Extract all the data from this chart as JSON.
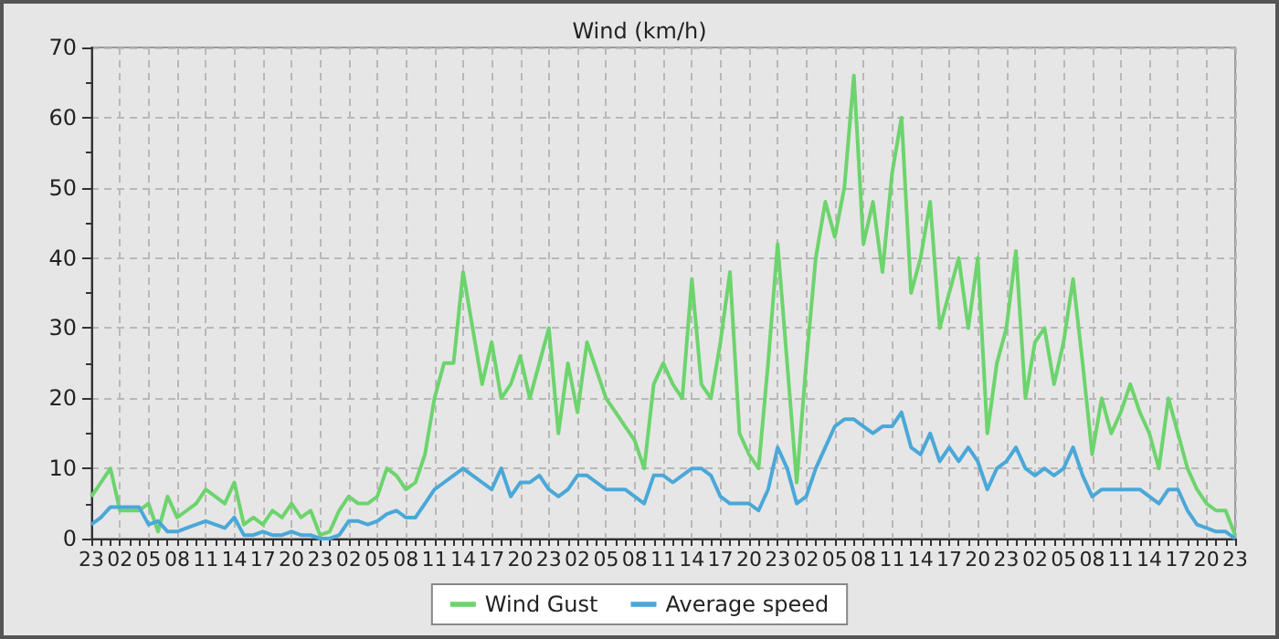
{
  "chart_data": {
    "type": "line",
    "title": "Wind (km/h)",
    "categories": [
      "23",
      null,
      null,
      "02",
      null,
      null,
      "05",
      null,
      null,
      "08",
      null,
      null,
      "11",
      null,
      null,
      "14",
      null,
      null,
      "17",
      null,
      null,
      "20",
      null,
      null,
      "23",
      null,
      null,
      "02",
      null,
      null,
      "05",
      null,
      null,
      "08",
      null,
      null,
      "11",
      null,
      null,
      "14",
      null,
      null,
      "17",
      null,
      null,
      "20",
      null,
      null,
      "23",
      null,
      null,
      "02",
      null,
      null,
      "05",
      null,
      null,
      "08",
      null,
      null,
      "11",
      null,
      null,
      "14",
      null,
      null,
      "17",
      null,
      null,
      "20",
      null,
      null,
      "23",
      null,
      null,
      "02",
      null,
      null,
      "05",
      null,
      null,
      "08",
      null,
      null,
      "11",
      null,
      null,
      "14",
      null,
      null,
      "17",
      null,
      null,
      "20",
      null,
      null,
      "23",
      null,
      null,
      "02",
      null,
      null,
      "05",
      null,
      null,
      "08",
      null,
      null,
      "11",
      null,
      null,
      "14",
      null,
      null,
      "17",
      null,
      null,
      "20",
      null,
      null,
      "23"
    ],
    "series": [
      {
        "name": "Wind Gust",
        "color": "#6dd46d",
        "values": [
          6,
          8,
          10,
          4,
          4,
          4,
          5,
          1,
          6,
          3,
          4,
          5,
          7,
          6,
          5,
          8,
          2,
          3,
          2,
          4,
          3,
          5,
          3,
          4,
          0.5,
          1,
          4,
          6,
          5,
          5,
          6,
          10,
          9,
          7,
          8,
          12,
          20,
          25,
          25,
          38,
          30,
          22,
          28,
          20,
          22,
          26,
          20,
          25,
          30,
          15,
          25,
          18,
          28,
          24,
          20,
          18,
          16,
          14,
          10,
          22,
          25,
          22,
          20,
          37,
          22,
          20,
          28,
          38,
          15,
          12,
          10,
          25,
          42,
          25,
          8,
          25,
          40,
          48,
          43,
          50,
          66,
          42,
          48,
          38,
          52,
          60,
          35,
          40,
          48,
          30,
          35,
          40,
          30,
          40,
          15,
          25,
          30,
          41,
          20,
          28,
          30,
          22,
          28,
          37,
          25,
          12,
          20,
          15,
          18,
          22,
          18,
          15,
          10,
          20,
          15,
          10,
          7,
          5,
          4,
          4,
          0.5
        ]
      },
      {
        "name": "Average speed",
        "color": "#4aa8d8",
        "values": [
          2,
          3,
          4.5,
          4.5,
          4.5,
          4.5,
          2,
          2.5,
          1,
          1,
          1.5,
          2,
          2.5,
          2,
          1.5,
          3,
          0.5,
          0.5,
          1,
          0.5,
          0.5,
          1,
          0.5,
          0.5,
          0,
          0,
          0.5,
          2.5,
          2.5,
          2,
          2.5,
          3.5,
          4,
          3,
          3,
          5,
          7,
          8,
          9,
          10,
          9,
          8,
          7,
          10,
          6,
          8,
          8,
          9,
          7,
          6,
          7,
          9,
          9,
          8,
          7,
          7,
          7,
          6,
          5,
          9,
          9,
          8,
          9,
          10,
          10,
          9,
          6,
          5,
          5,
          5,
          4,
          7,
          13,
          10,
          5,
          6,
          10,
          13,
          16,
          17,
          17,
          16,
          15,
          16,
          16,
          18,
          13,
          12,
          15,
          11,
          13,
          11,
          13,
          11,
          7,
          10,
          11,
          13,
          10,
          9,
          10,
          9,
          10,
          13,
          9,
          6,
          7,
          7,
          7,
          7,
          7,
          6,
          5,
          7,
          7,
          4,
          2,
          1.5,
          1,
          1,
          0
        ]
      }
    ],
    "ylim": [
      0,
      70
    ],
    "yticks": [
      0,
      {
        "value": 5,
        "label": null
      },
      10,
      {
        "value": 15,
        "label": null
      },
      20,
      {
        "value": 25,
        "label": null
      },
      30,
      {
        "value": 35,
        "label": null
      },
      40,
      {
        "value": 45,
        "label": null
      },
      50,
      {
        "value": 55,
        "label": null
      },
      60,
      {
        "value": 65,
        "label": null
      },
      70
    ],
    "grid": true,
    "legend": "bottom",
    "marker": "none",
    "line_style": "solid"
  }
}
